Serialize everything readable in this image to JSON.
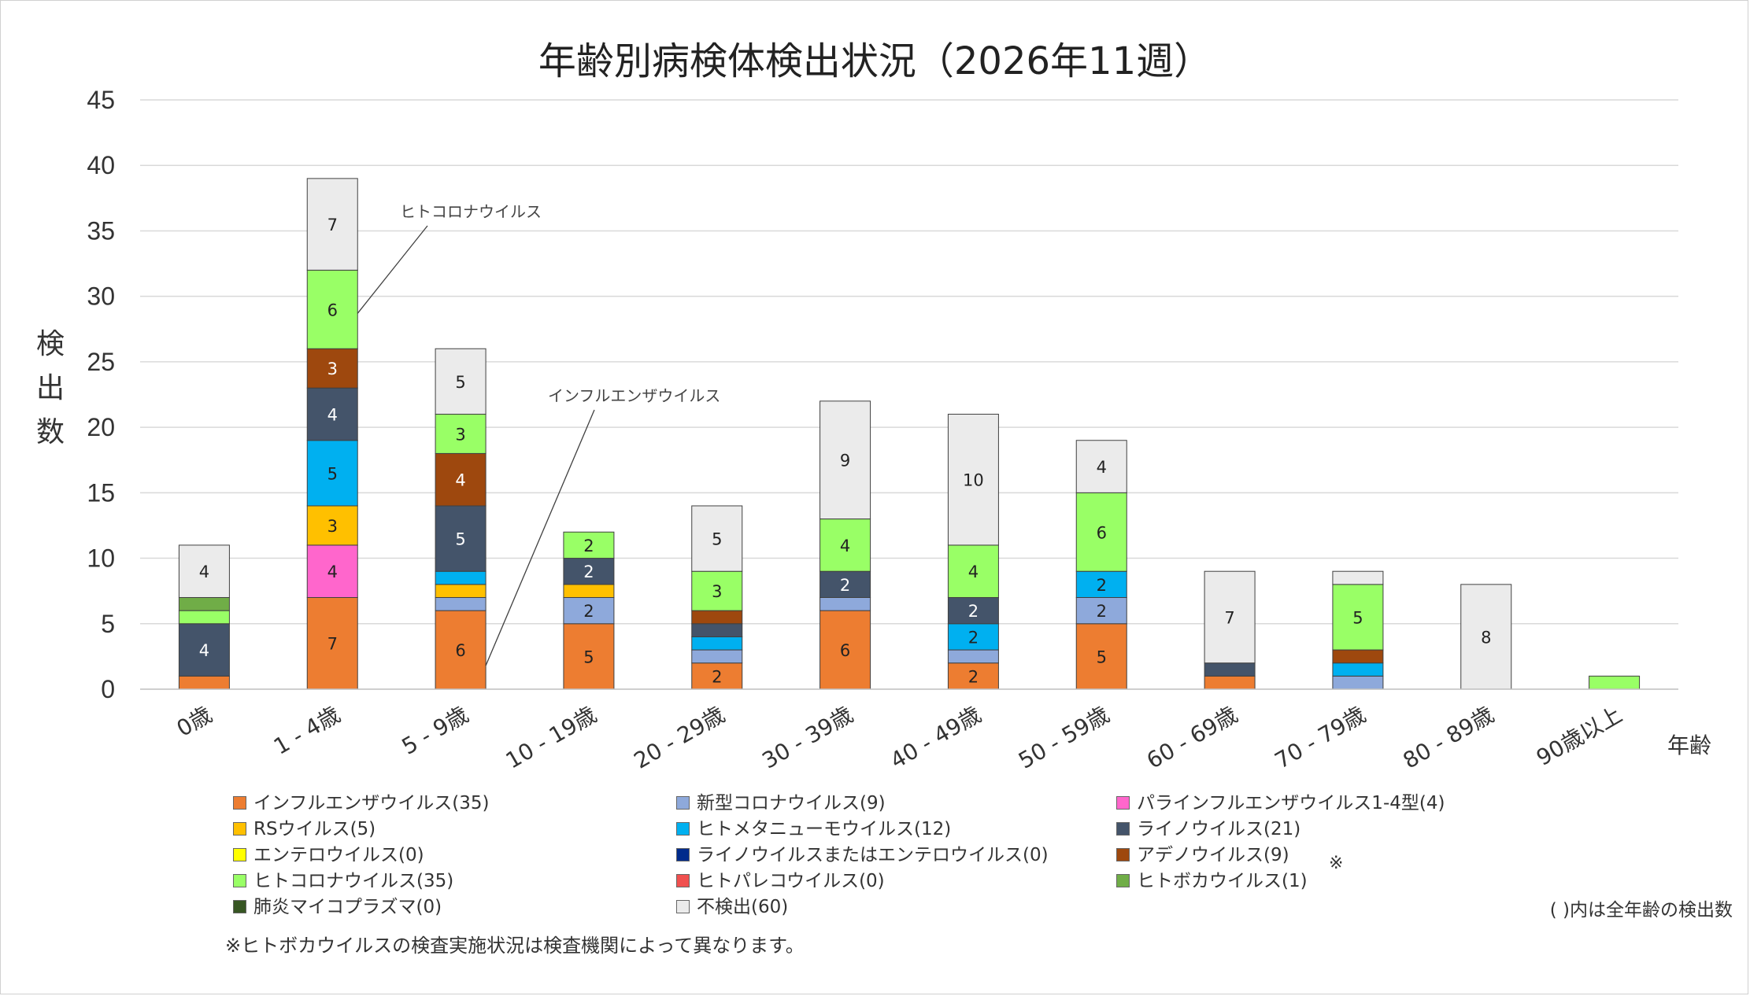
{
  "chart_data": {
    "type": "bar",
    "stacked": true,
    "title": "年齢別病検体検出状況（2026年11週）",
    "ylabel": "検出数",
    "xlabel": "年齢",
    "ylim": [
      0,
      45
    ],
    "yticks": [
      0,
      5,
      10,
      15,
      20,
      25,
      30,
      35,
      40,
      45
    ],
    "grid": true,
    "legend_position": "bottom",
    "categories": [
      "0歳",
      "1 - 4歳",
      "5 - 9歳",
      "10 - 19歳",
      "20 - 29歳",
      "30 - 39歳",
      "40 - 49歳",
      "50 - 59歳",
      "60 - 69歳",
      "70 - 79歳",
      "80 - 89歳",
      "90歳以上"
    ],
    "series": [
      {
        "name": "インフルエンザウイルス(35)",
        "color": "#ED7D31",
        "values": [
          1,
          7,
          6,
          5,
          2,
          6,
          2,
          5,
          1,
          0,
          0,
          0
        ]
      },
      {
        "name": "新型コロナウイルス(9)",
        "color": "#8EA9DB",
        "values": [
          0,
          0,
          1,
          2,
          1,
          1,
          1,
          2,
          0,
          1,
          0,
          0
        ]
      },
      {
        "name": "パラインフルエンザウイルス1-4型(4)",
        "color": "#FF66CC",
        "values": [
          0,
          4,
          0,
          0,
          0,
          0,
          0,
          0,
          0,
          0,
          0,
          0
        ]
      },
      {
        "name": "RSウイルス(5)",
        "color": "#FFC000",
        "values": [
          0,
          3,
          1,
          1,
          0,
          0,
          0,
          0,
          0,
          0,
          0,
          0
        ]
      },
      {
        "name": "ヒトメタニューモウイルス(12)",
        "color": "#00B0F0",
        "values": [
          0,
          5,
          1,
          0,
          1,
          0,
          2,
          2,
          0,
          1,
          0,
          0
        ]
      },
      {
        "name": "ライノウイルス(21)",
        "color": "#44546A",
        "values": [
          4,
          4,
          5,
          2,
          1,
          2,
          2,
          0,
          1,
          0,
          0,
          0
        ]
      },
      {
        "name": "エンテロウイルス(0)",
        "color": "#FFFF00",
        "values": [
          0,
          0,
          0,
          0,
          0,
          0,
          0,
          0,
          0,
          0,
          0,
          0
        ]
      },
      {
        "name": "ライノウイルスまたはエンテロウイルス(0)",
        "color": "#002B8C",
        "values": [
          0,
          0,
          0,
          0,
          0,
          0,
          0,
          0,
          0,
          0,
          0,
          0
        ]
      },
      {
        "name": "アデノウイルス(9)",
        "color": "#9E480E",
        "values": [
          0,
          3,
          4,
          0,
          1,
          0,
          0,
          0,
          0,
          1,
          0,
          0
        ]
      },
      {
        "name": "ヒトコロナウイルス(35)",
        "color": "#99FF66",
        "values": [
          1,
          6,
          3,
          2,
          3,
          4,
          4,
          6,
          0,
          5,
          0,
          1
        ]
      },
      {
        "name": "ヒトパレコウイルス(0)",
        "color": "#F0504F",
        "values": [
          0,
          0,
          0,
          0,
          0,
          0,
          0,
          0,
          0,
          0,
          0,
          0
        ]
      },
      {
        "name": "ヒトボカウイルス(1)",
        "color": "#70AD47",
        "values": [
          1,
          0,
          0,
          0,
          0,
          0,
          0,
          0,
          0,
          0,
          0,
          0
        ]
      },
      {
        "name": "肺炎マイコプラズマ(0)",
        "color": "#375623",
        "values": [
          0,
          0,
          0,
          0,
          0,
          0,
          0,
          0,
          0,
          0,
          0,
          0
        ]
      },
      {
        "name": "不検出(60)",
        "color": "#EBEBEB",
        "values": [
          4,
          7,
          5,
          0,
          5,
          9,
          10,
          4,
          7,
          1,
          8,
          0
        ]
      }
    ],
    "annotations": [
      {
        "text": "ヒトコロナウイルス",
        "category": "1 - 4歳",
        "series": "ヒトコロナウイルス(35)"
      },
      {
        "text": "インフルエンザウイルス",
        "category": "5 - 9歳",
        "series": "インフルエンザウイルス(35)"
      }
    ]
  },
  "legend_mark": "※",
  "legend_note": "( )内は全年齢の検出数",
  "footnote": "※ヒトボカウイルスの検査実施状況は検査機関によって異なります。"
}
